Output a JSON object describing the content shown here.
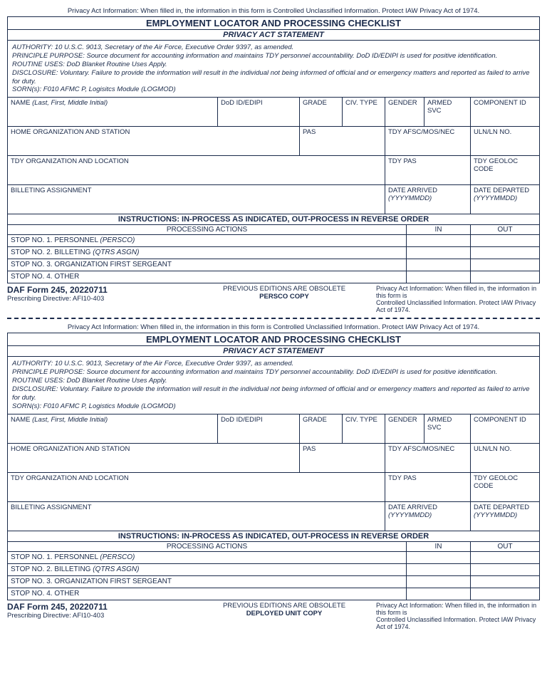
{
  "copies": [
    {
      "topPrivacy": "Privacy Act Information: When filled in, the information in this form is Controlled Unclassified Information. Protect IAW Privacy Act of 1974.",
      "title": "EMPLOYMENT LOCATOR AND PROCESSING CHECKLIST",
      "subtitle": "PRIVACY ACT STATEMENT",
      "statement": {
        "authority": "AUTHORITY: 10 U.S.C. 9013, Secretary of the Air Force, Executive Order 9397, as amended.",
        "purpose": "PRINCIPLE PURPOSE: Source document for accounting information and maintains TDY personnel accountability. DoD ID/EDIPI is used for positive identification.",
        "routine": "ROUTINE USES: DoD Blanket Routine Uses Apply.",
        "disclosure": "DISCLOSURE: Voluntary. Failure to provide the information will result in the individual not being informed of official and or emergency matters and reported as failed to arrive for duty.",
        "sorn": "SORN(s): F010 AFMC P, Logisitcs Module (LOGMOD)"
      },
      "row1": {
        "name": "NAME (Last, First, Middle Initial)",
        "dodid": "DoD ID/EDIPI",
        "grade": "GRADE",
        "civtype": "CIV. TYPE",
        "gender": "GENDER",
        "armed": "ARMED SVC",
        "comp": "COMPONENT ID"
      },
      "row2": {
        "homeorg": "HOME ORGANIZATION AND STATION",
        "pas": "PAS",
        "afsc": "TDY AFSC/MOS/NEC",
        "uln": "ULN/LN NO."
      },
      "row3": {
        "tdyorg": "TDY ORGANIZATION AND LOCATION",
        "tdypas": "TDY PAS",
        "geoloc": "TDY GEOLOC CODE"
      },
      "row4": {
        "billet": "BILLETING ASSIGNMENT",
        "arrived": "DATE ARRIVED",
        "arrivedFmt": "(YYYYMMDD)",
        "departed": "DATE DEPARTED",
        "departedFmt": "(YYYYMMDD)"
      },
      "instructions": "INSTRUCTIONS: IN-PROCESS AS INDICATED, OUT-PROCESS IN REVERSE ORDER",
      "actionsHeader": {
        "actions": "PROCESSING ACTIONS",
        "in": "IN",
        "out": "OUT"
      },
      "actions": [
        {
          "text": "STOP NO. 1. PERSONNEL  (PERSCO)",
          "italicFrom": "(PERSCO)"
        },
        {
          "text": "STOP NO. 2. BILLETING  (QTRS ASGN)",
          "italicFrom": "(QTRS ASGN)"
        },
        {
          "text": "STOP NO. 3.    ORGANIZATION FIRST SERGEANT"
        },
        {
          "text": "STOP NO. 4.    OTHER"
        }
      ],
      "footer": {
        "formno": "DAF Form 245, 20220711",
        "directive": "Prescribing Directive: AFI10-403",
        "obsolete": "PREVIOUS EDITIONS ARE OBSOLETE",
        "copy": "PERSCO COPY",
        "right1": "Privacy Act Information: When filled in, the information in this form is",
        "right2": "Controlled Unclassified Information. Protect IAW Privacy Act of 1974."
      }
    },
    {
      "topPrivacy": "Privacy Act Information: When filled in, the information in this form is Controlled Unclassified Information. Protect IAW Privacy Act of 1974.",
      "title": "EMPLOYMENT LOCATOR AND PROCESSING CHECKLIST",
      "subtitle": "PRIVACY ACT STATEMENT",
      "statement": {
        "authority": "AUTHORITY: 10 U.S.C. 9013, Secretary of the Air Force, Executive Order 9397, as amended.",
        "purpose": "PRINCIPLE PURPOSE: Source document for accounting information and maintains TDY personnel accountability. DoD ID/EDIPI is used for positive identification.",
        "routine": "ROUTINE USES: DoD Blanket Routine Uses Apply.",
        "disclosure": "DISCLOSURE: Voluntary. Failure to provide the information will result in the individual not being informed of official and or emergency matters and reported as failed to arrive for duty.",
        "sorn": "SORN(s):  F010 AFMC P, Logistics Module (LOGMOD)"
      },
      "row1": {
        "name": "NAME (Last, First, Middle Initial)",
        "dodid": "DoD ID/EDIPI",
        "grade": "GRADE",
        "civtype": "CIV. TYPE",
        "gender": "GENDER",
        "armed": "ARMED SVC",
        "comp": "COMPONENT ID"
      },
      "row2": {
        "homeorg": "HOME ORGANIZATION AND STATION",
        "pas": "PAS",
        "afsc": "TDY AFSC/MOS/NEC",
        "uln": "ULN/LN NO."
      },
      "row3": {
        "tdyorg": "TDY ORGANIZATION AND LOCATION",
        "tdypas": "TDY PAS",
        "geoloc": "TDY GEOLOC CODE"
      },
      "row4": {
        "billet": "BILLETING ASSIGNMENT",
        "arrived": "DATE ARRIVED",
        "arrivedFmt": "(YYYYMMDD)",
        "departed": "DATE DEPARTED",
        "departedFmt": "(YYYYMMDD)"
      },
      "instructions": "INSTRUCTIONS: IN-PROCESS AS INDICATED, OUT-PROCESS IN REVERSE ORDER",
      "actionsHeader": {
        "actions": "PROCESSING ACTIONS",
        "in": "IN",
        "out": "OUT"
      },
      "actions": [
        {
          "text": "STOP NO. 1. PERSONNEL  (PERSCO)",
          "italicFrom": "(PERSCO)"
        },
        {
          "text": "STOP NO. 2. BILLETING  (QTRS ASGN)",
          "italicFrom": "(QTRS ASGN)"
        },
        {
          "text": "STOP NO. 3.    ORGANIZATION FIRST SERGEANT"
        },
        {
          "text": "STOP NO. 4.    OTHER"
        }
      ],
      "footer": {
        "formno": "DAF Form 245, 20220711",
        "directive": "Prescribing Directive: AFI10-403",
        "obsolete": "PREVIOUS EDITIONS ARE OBSOLETE",
        "copy": "DEPLOYED UNIT COPY",
        "right1": "Privacy Act Information: When filled in, the information in this form is",
        "right2": "Controlled Unclassified Information. Protect IAW Privacy Act of 1974."
      }
    }
  ]
}
